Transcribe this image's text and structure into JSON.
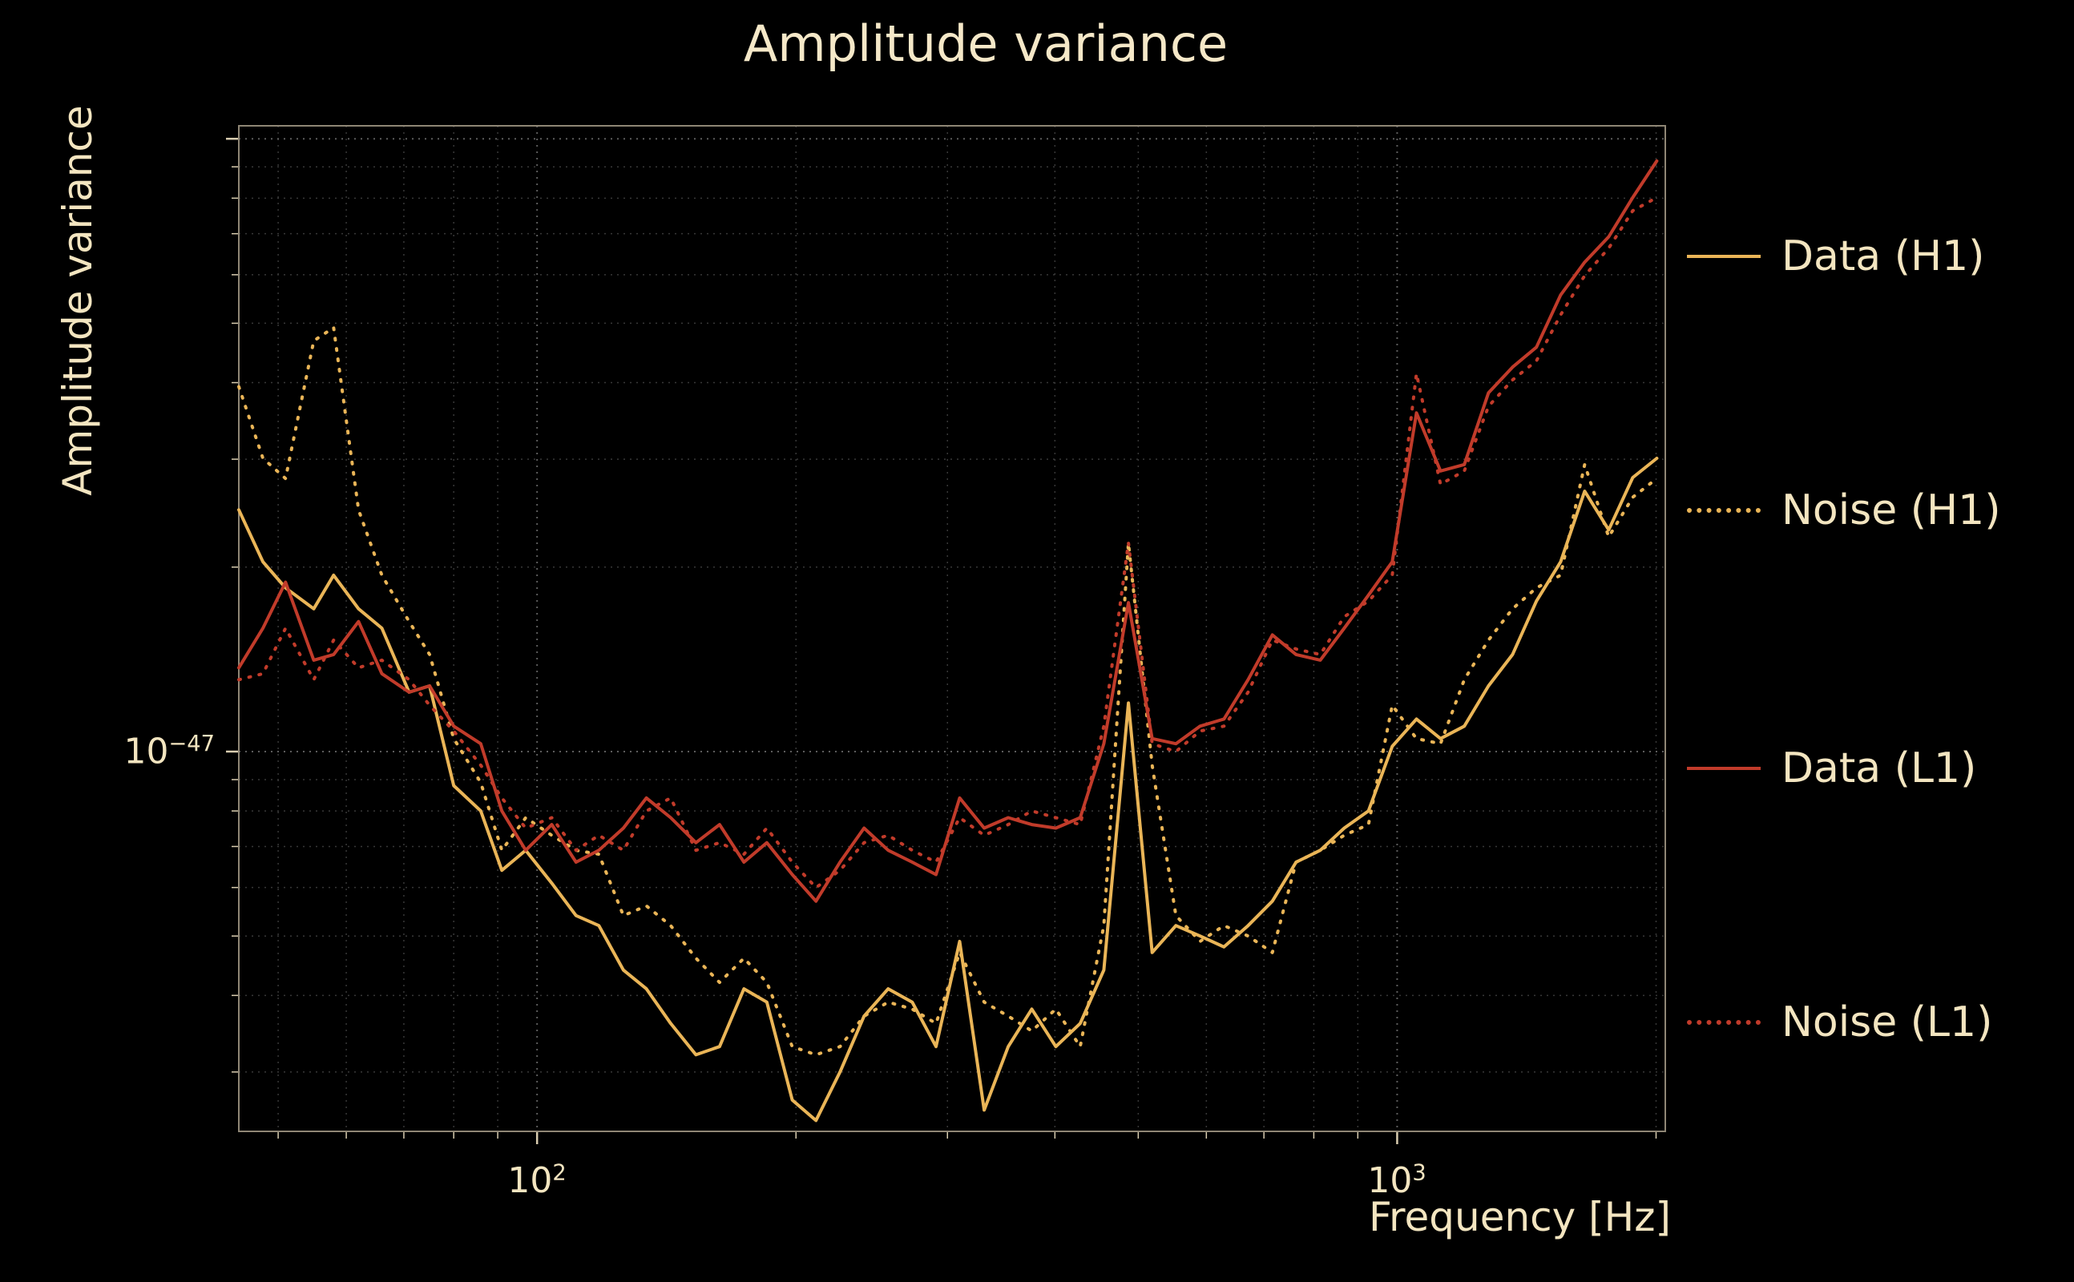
{
  "figure": {
    "title": "Amplitude variance",
    "xlabel": "Frequency [Hz]",
    "ylabel": "Amplitude variance",
    "background_color": "#000000",
    "text_color": "#f3e5c0"
  },
  "axis_ticks": {
    "x": [
      {
        "base": "10",
        "exp": "2"
      },
      {
        "base": "10",
        "exp": "3"
      }
    ],
    "y": [
      {
        "base": "10",
        "exp": "−47"
      }
    ]
  },
  "legend": {
    "items": [
      {
        "label": "Data (H1)",
        "style": "solid",
        "color": "#eab557"
      },
      {
        "label": "Noise (H1)",
        "style": "dotted",
        "color": "#eab557"
      },
      {
        "label": "Data (L1)",
        "style": "solid",
        "color": "#c13b2a"
      },
      {
        "label": "Noise (L1)",
        "style": "dotted",
        "color": "#c13b2a"
      }
    ]
  },
  "chart_data": {
    "type": "line",
    "title": "Amplitude variance",
    "xlabel": "Frequency [Hz]",
    "ylabel": "Amplitude variance",
    "xscale": "log",
    "yscale": "log",
    "xlim": [
      45,
      2050
    ],
    "ylim": [
      2.4e-48,
      1.05e-46
    ],
    "grid": true,
    "legend_position": "right-outside",
    "value_scale": 1e-48,
    "x": [
      45,
      48,
      51,
      55,
      58,
      62,
      66,
      71,
      75,
      80,
      86,
      91,
      97,
      104,
      111,
      118,
      126,
      134,
      143,
      153,
      163,
      174,
      185,
      198,
      211,
      225,
      240,
      256,
      273,
      291,
      310,
      331,
      353,
      376,
      401,
      428,
      456,
      487,
      519,
      553,
      590,
      629,
      671,
      716,
      763,
      814,
      868,
      926,
      987,
      1053,
      1123,
      1197,
      1277,
      1362,
      1452,
      1549,
      1652,
      1762,
      1879,
      2004
    ],
    "series": [
      {
        "name": "Data (H1)",
        "color": "#eab557",
        "style": "solid",
        "values": [
          24.8,
          20.4,
          18.5,
          17.1,
          19.4,
          17.1,
          15.9,
          12.5,
          12.8,
          8.8,
          8.0,
          6.4,
          6.9,
          6.1,
          5.4,
          5.2,
          4.4,
          4.1,
          3.6,
          3.2,
          3.3,
          4.1,
          3.9,
          2.7,
          2.5,
          3.0,
          3.7,
          4.1,
          3.9,
          3.3,
          4.9,
          2.6,
          3.3,
          3.8,
          3.3,
          3.6,
          4.4,
          12.0,
          4.7,
          5.2,
          5.0,
          4.8,
          5.2,
          5.7,
          6.6,
          6.9,
          7.5,
          8.0,
          10.2,
          11.3,
          10.5,
          11.0,
          12.8,
          14.4,
          17.6,
          20.4,
          26.6,
          23.0,
          28.0,
          30.1
        ]
      },
      {
        "name": "Noise (H1)",
        "color": "#eab557",
        "style": "dotted",
        "values": [
          39.4,
          30.1,
          27.9,
          46.8,
          49.2,
          24.8,
          19.4,
          16.3,
          14.4,
          10.5,
          8.9,
          6.9,
          7.8,
          7.3,
          6.9,
          6.8,
          5.4,
          5.6,
          5.2,
          4.6,
          4.2,
          4.6,
          4.2,
          3.3,
          3.2,
          3.3,
          3.7,
          3.9,
          3.8,
          3.6,
          4.7,
          3.9,
          3.7,
          3.5,
          3.8,
          3.3,
          5.2,
          21.9,
          9.5,
          5.4,
          4.9,
          5.2,
          5.0,
          4.7,
          6.6,
          6.9,
          7.3,
          7.6,
          11.9,
          10.5,
          10.3,
          13.1,
          15.2,
          17.1,
          18.5,
          19.4,
          29.4,
          22.4,
          26.0,
          27.9
        ]
      },
      {
        "name": "Data (L1)",
        "color": "#c13b2a",
        "style": "solid",
        "values": [
          13.7,
          15.9,
          18.9,
          14.1,
          14.4,
          16.3,
          13.4,
          12.5,
          12.8,
          11.0,
          10.3,
          8.0,
          6.9,
          7.6,
          6.6,
          6.9,
          7.5,
          8.4,
          7.8,
          7.1,
          7.6,
          6.6,
          7.1,
          6.3,
          5.7,
          6.6,
          7.5,
          6.9,
          6.6,
          6.3,
          8.4,
          7.5,
          7.8,
          7.6,
          7.5,
          7.8,
          10.3,
          17.5,
          10.5,
          10.3,
          11.0,
          11.3,
          13.1,
          15.5,
          14.4,
          14.1,
          15.9,
          18.0,
          20.4,
          35.7,
          28.7,
          29.4,
          38.5,
          42.4,
          45.7,
          55.6,
          62.9,
          69.2,
          80.2,
          92.0
        ]
      },
      {
        "name": "Noise (L1)",
        "color": "#c13b2a",
        "style": "dotted",
        "values": [
          13.1,
          13.4,
          15.9,
          13.1,
          15.2,
          13.7,
          14.1,
          13.1,
          11.9,
          10.8,
          9.5,
          8.4,
          7.5,
          7.8,
          6.9,
          7.3,
          6.9,
          8.0,
          8.4,
          6.9,
          7.1,
          6.8,
          7.5,
          6.6,
          6.0,
          6.4,
          7.1,
          7.3,
          6.9,
          6.6,
          7.8,
          7.3,
          7.6,
          8.0,
          7.8,
          7.6,
          11.0,
          21.9,
          10.3,
          10.0,
          10.8,
          11.0,
          12.5,
          15.2,
          14.7,
          14.4,
          16.6,
          17.6,
          19.4,
          41.4,
          27.3,
          28.7,
          36.6,
          40.4,
          43.4,
          51.6,
          59.8,
          66.3,
          76.3,
          80.2
        ]
      }
    ]
  }
}
